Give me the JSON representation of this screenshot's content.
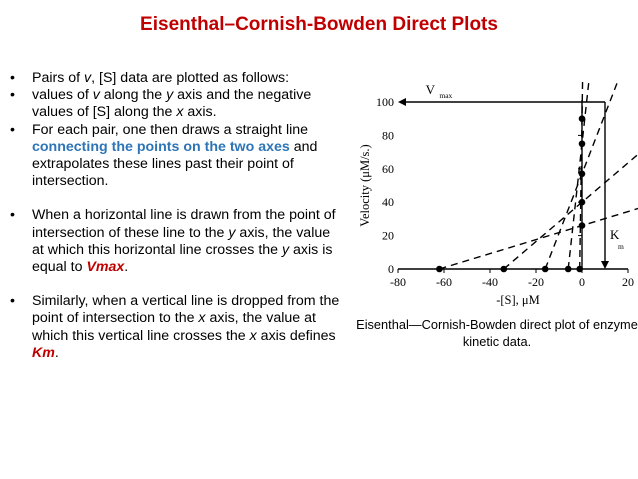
{
  "slide": {
    "title": "Eisenthal–Cornish-Bowden Direct Plots",
    "bullets": [
      {
        "pre": "Pairs of ",
        "v": "v",
        "post": ", [S] data are plotted as follows:"
      },
      {
        "pre": "values of ",
        "v": "v",
        "post": " along the ",
        "y": "y",
        "mid": " axis and the negative values of [S] along the ",
        "x": "x",
        "end": " axis."
      },
      {
        "pre": "For each pair, one then draws a straight line ",
        "highlight": "connecting the points on the two axes",
        "post": " and extrapolates these lines past their point of intersection."
      },
      {
        "pre": "When a horizontal line is drawn from the point of intersection of these line to the ",
        "y": "y",
        "mid": " axis, the value at which this horizontal line crosses the ",
        "y2": "y",
        "post": " axis is equal to ",
        "highlight": "Vmax",
        "end": "."
      },
      {
        "pre": "Similarly, when a vertical line is dropped from the point of intersection to the ",
        "x": "x",
        "mid": " axis, the value at which this vertical line crosses the ",
        "x2": "x",
        "post": " axis defines ",
        "highlight": "Km",
        "end": "."
      }
    ],
    "caption": "Eisenthal—Cornish-Bowden direct plot of enzyme kinetic data."
  },
  "chart_data": {
    "type": "line",
    "title": "",
    "xlabel": "-[S], μM",
    "ylabel": "Velocity (μM/s.)",
    "xlim": [
      -80,
      20
    ],
    "ylim": [
      0,
      100
    ],
    "x_ticks": [
      "-80",
      "-60",
      "-40",
      "-20",
      "0",
      "20"
    ],
    "y_ticks": [
      "0",
      "20",
      "40",
      "60",
      "80",
      "100"
    ],
    "annotations": {
      "vmax": "V",
      "vmax_sub": "max",
      "km": "K",
      "km_sub": "m"
    },
    "intersection": {
      "km": 10,
      "vmax": 100
    },
    "pairs": [
      {
        "neg_s": -62,
        "v": 26
      },
      {
        "neg_s": -34,
        "v": 40
      },
      {
        "neg_s": -16,
        "v": 57
      },
      {
        "neg_s": -6,
        "v": 75
      },
      {
        "neg_s": -1,
        "v": 90
      }
    ],
    "grid": false
  }
}
